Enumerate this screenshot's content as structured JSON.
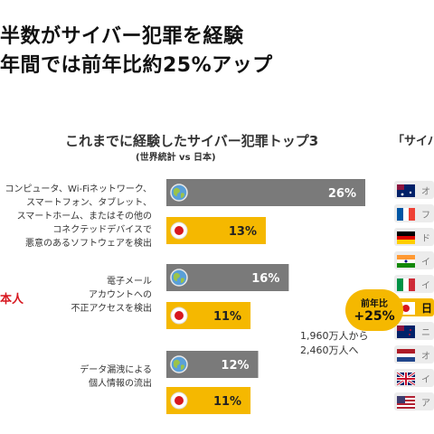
{
  "headline": {
    "line1": "半数がサイバー犯罪を経験",
    "line2": "年間では前年比約25%アップ"
  },
  "chart_data": {
    "type": "bar",
    "title": "これまでに経験したサイバー犯罪トップ3",
    "subtitle": "(世界統計 vs 日本)",
    "categories": [
      [
        "コンピュータ、Wi-Fiネットワーク、",
        "スマートフォン、タブレット、",
        "スマートホーム、またはその他の",
        "コネクテッドデバイスで",
        "悪意のあるソフトウェアを検出"
      ],
      [
        "電子メール",
        "アカウントへの",
        "不正アクセスを検出"
      ],
      [
        "データ漏洩による",
        "個人情報の流出"
      ]
    ],
    "series": [
      {
        "icon": "globe-icon",
        "color": "#7a7a7a",
        "values": [
          26,
          16,
          12
        ]
      },
      {
        "icon": "japan-flag-icon",
        "color": "#f5b800",
        "values": [
          13,
          11,
          11
        ]
      }
    ],
    "data_labels": [
      [
        "26%",
        "16%",
        "12%"
      ],
      [
        "13%",
        "11%",
        "11%"
      ]
    ],
    "xlim": [
      0,
      28
    ]
  },
  "side_tag": "本人",
  "right_panel": {
    "title": "「サイバ",
    "badge_line1": "前年比",
    "badge_line2": "+25%",
    "growth_line1": "1,960万人から",
    "growth_line2": "2,460万人へ",
    "countries": [
      {
        "flag": "australia-flag-icon",
        "label": "オ",
        "highlight": false
      },
      {
        "flag": "france-flag-icon",
        "label": "フ",
        "highlight": false
      },
      {
        "flag": "germany-flag-icon",
        "label": "ド",
        "highlight": false
      },
      {
        "flag": "india-flag-icon",
        "label": "イ",
        "highlight": false
      },
      {
        "flag": "italy-flag-icon",
        "label": "イ",
        "highlight": false
      },
      {
        "flag": "japan-flag-icon",
        "label": "日",
        "highlight": true
      },
      {
        "flag": "new-zealand-flag-icon",
        "label": "ニ",
        "highlight": false
      },
      {
        "flag": "netherlands-flag-icon",
        "label": "オ",
        "highlight": false
      },
      {
        "flag": "uk-flag-icon",
        "label": "イ",
        "highlight": false
      },
      {
        "flag": "usa-flag-icon",
        "label": "ア",
        "highlight": false
      }
    ]
  }
}
